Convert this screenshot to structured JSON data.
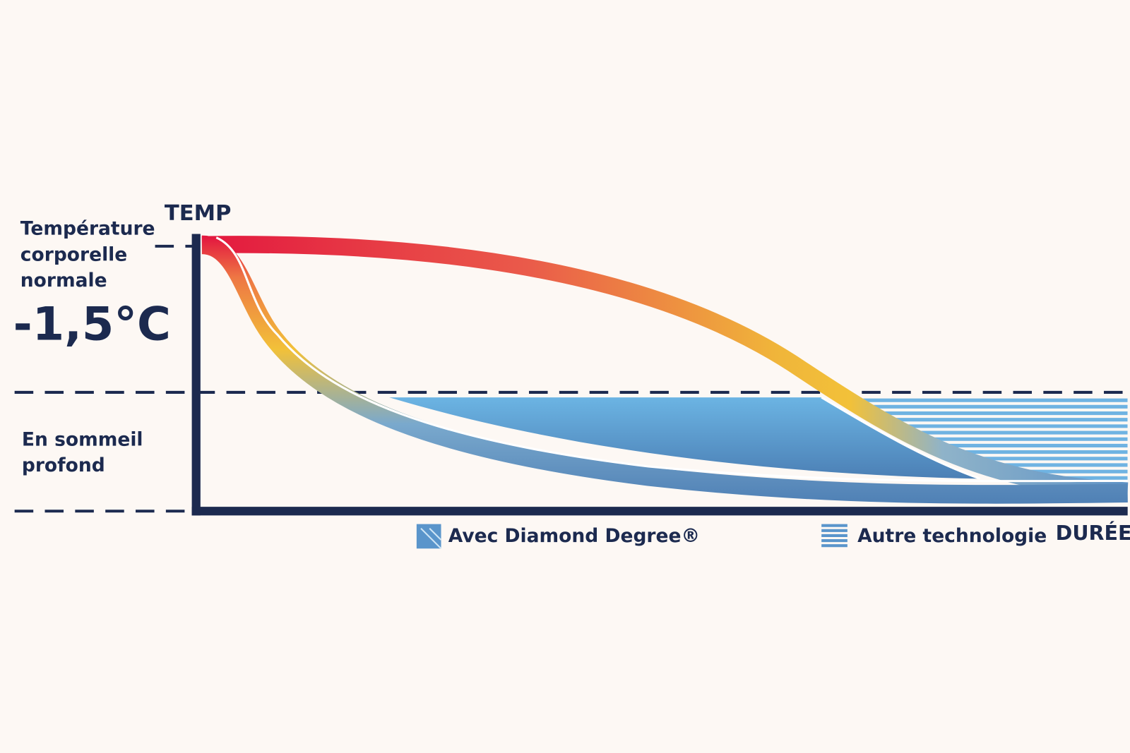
{
  "axis": {
    "y_label": "TEMP",
    "x_label": "DURÉE"
  },
  "levels": [
    {
      "label_lines": [
        "Température",
        "corporelle",
        "normale"
      ]
    },
    {
      "label_lines": [
        "En sommeil",
        "profond"
      ]
    }
  ],
  "annotation": "-1,5°C",
  "legend": [
    {
      "label": "Avec Diamond Degree®"
    },
    {
      "label": "Autre technologie"
    }
  ]
}
